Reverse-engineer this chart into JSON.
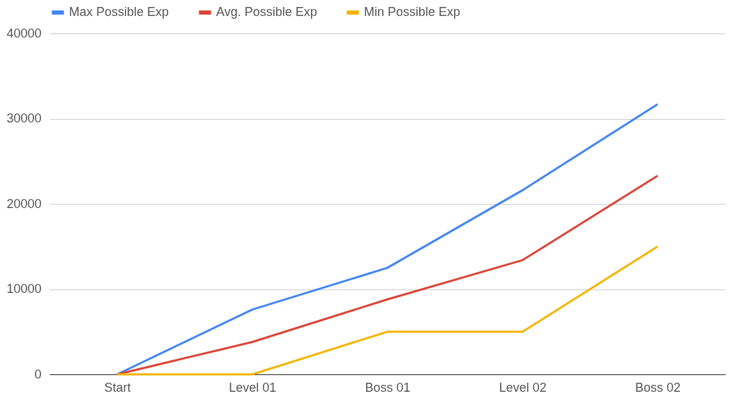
{
  "chart_data": {
    "type": "line",
    "categories": [
      "Start",
      "Level 01",
      "Boss 01",
      "Level 02",
      "Boss 02"
    ],
    "series": [
      {
        "name": "Max Possible Exp",
        "color": "#4285f4",
        "values": [
          0,
          7600,
          12500,
          21600,
          31700
        ]
      },
      {
        "name": "Avg. Possible Exp",
        "color": "#db4437",
        "values": [
          0,
          3800,
          8800,
          13400,
          23300
        ]
      },
      {
        "name": "Min Possible Exp",
        "color": "#f4b400",
        "values": [
          0,
          0,
          5000,
          5000,
          15000
        ]
      }
    ],
    "ylim": [
      0,
      40000
    ],
    "yticks": [
      0,
      10000,
      20000,
      30000,
      40000
    ],
    "grid": "y",
    "legend": "top"
  }
}
